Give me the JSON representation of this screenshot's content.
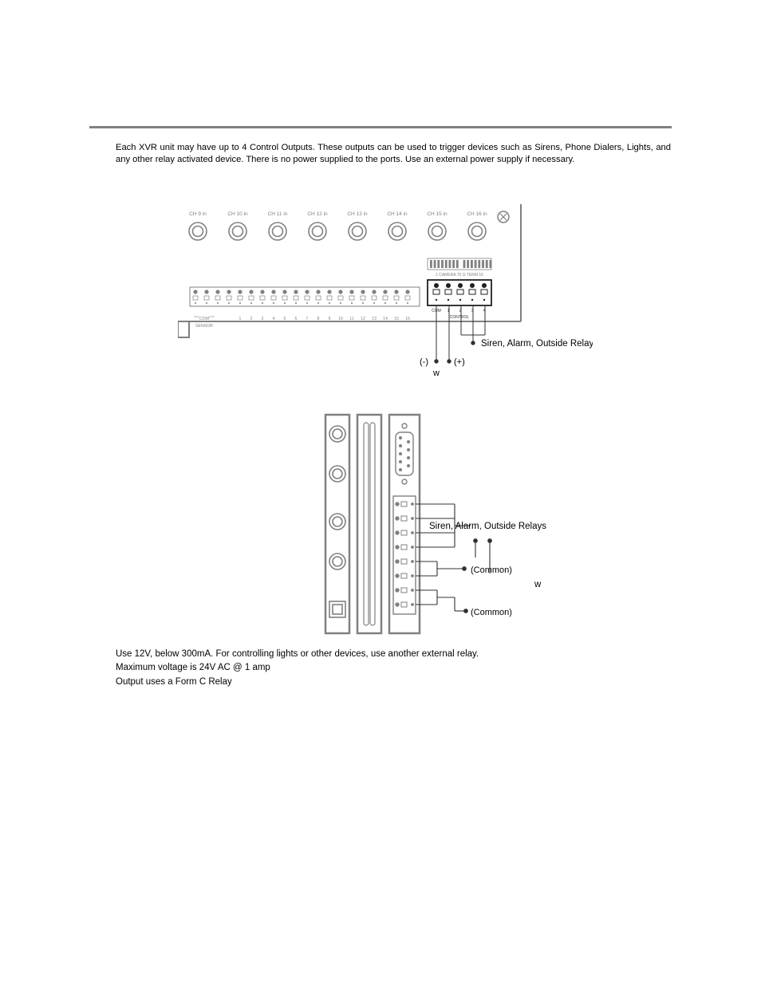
{
  "intro": "Each XVR unit may have up to 4 Control Outputs. These outputs can be used to trigger devices such as Sirens, Phone Dialers, Lights, and any other relay activated device.  There is no power supplied to the ports. Use an external power supply if necessary.",
  "notes": {
    "line1": "Use 12V, below 300mA. For controlling lights or other devices, use another external relay.",
    "line2": "Maximum voltage is 24V AC @ 1 amp",
    "line3": "Output uses a Form C Relay"
  },
  "diagram1": {
    "channel_labels": [
      "CH 9 in",
      "CH 10 in",
      "CH 11 in",
      "CH 12 in",
      "CH 13 in",
      "CH 14 in",
      "CH 15 in",
      "CH 16 in"
    ],
    "sensor_label": "SENSOR",
    "com_label": "COM",
    "sensor_numbers": [
      "1",
      "2",
      "3",
      "4",
      "5",
      "6",
      "7",
      "8",
      "9",
      "10",
      "11",
      "12",
      "13",
      "14",
      "15",
      "16"
    ],
    "camera_term_label": "1  CAMERA  75 Ω   TERM  16",
    "control_com_label": "COM",
    "control_numbers": [
      "1",
      "2",
      "3",
      "4"
    ],
    "control_label": "CONTROL",
    "relay_label": "Siren, Alarm, Outside Relays",
    "neg_label": "(-)",
    "pos_label": "(+)",
    "w_label": "w",
    "colors": {
      "stroke": "#808080",
      "label": "#808080",
      "text": "#000000",
      "dark_stroke": "#303030",
      "fill_light": "#fdfdfd"
    }
  },
  "diagram2": {
    "relay_label": "Siren, Alarm, Outside Relays",
    "common_label": "(Common)",
    "w_label": "w",
    "colors": {
      "stroke": "#808080",
      "text": "#000000",
      "dark_stroke": "#303030"
    }
  }
}
